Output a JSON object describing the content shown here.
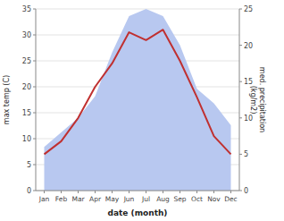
{
  "chart_data": {
    "type": "line",
    "categories": [
      "Jan",
      "Feb",
      "Mar",
      "Apr",
      "May",
      "Jun",
      "Jul",
      "Aug",
      "Sep",
      "Oct",
      "Nov",
      "Dec"
    ],
    "xlabel": "date (month)",
    "ylabel": "max temp (C)",
    "y2label": "med. precipitation\n(kg/m2)",
    "series": [
      {
        "type": "area",
        "axis": "y2",
        "color": "#b8c8f0",
        "values": [
          6,
          8,
          10,
          13,
          19,
          24,
          25,
          24,
          20,
          14,
          12,
          9
        ]
      },
      {
        "type": "line",
        "color": "#c03030",
        "values": [
          7,
          9.5,
          14,
          20,
          24.5,
          30.5,
          29,
          31,
          25,
          18,
          10.5,
          7
        ]
      }
    ],
    "ylim": [
      0,
      35
    ],
    "yticks": [
      0,
      5,
      10,
      15,
      20,
      25,
      30,
      35
    ],
    "y2lim": [
      0,
      25
    ],
    "y2ticks": [
      0,
      5,
      10,
      15,
      20,
      25
    ],
    "grid": true
  }
}
